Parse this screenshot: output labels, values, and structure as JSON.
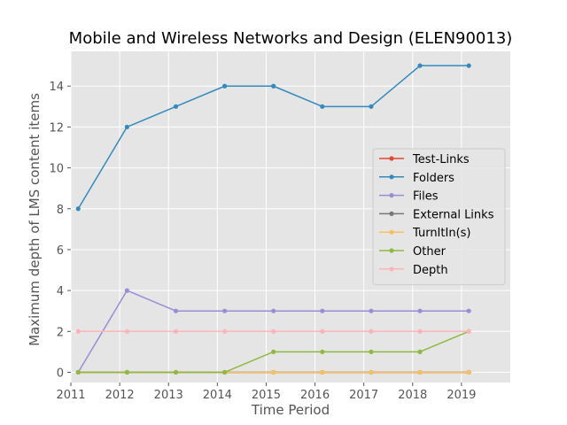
{
  "chart_data": {
    "type": "line",
    "title": "Mobile and Wireless Networks and Design (ELEN90013)",
    "xlabel": "Time Period",
    "ylabel": "Maximum depth of LMS content items",
    "xlim": [
      2011,
      2020
    ],
    "ylim": [
      -0.5,
      15.7
    ],
    "xticks": [
      2011,
      2012,
      2013,
      2014,
      2015,
      2016,
      2017,
      2018,
      2019
    ],
    "yticks": [
      0,
      2,
      4,
      6,
      8,
      10,
      12,
      14
    ],
    "x": [
      2011.15,
      2012.15,
      2013.15,
      2014.15,
      2015.15,
      2016.15,
      2017.15,
      2018.15,
      2019.15
    ],
    "grid": true,
    "legend_position": "center-right",
    "series": [
      {
        "name": "Test-Links",
        "color": "#E24A33",
        "values": [
          0,
          0,
          0,
          0,
          0,
          0,
          0,
          0,
          0
        ]
      },
      {
        "name": "Folders",
        "color": "#348ABD",
        "values": [
          8,
          12,
          13,
          14,
          14,
          13,
          13,
          15,
          15
        ]
      },
      {
        "name": "Files",
        "color": "#988ED5",
        "values": [
          0,
          4,
          3,
          3,
          3,
          3,
          3,
          3,
          3
        ]
      },
      {
        "name": "External Links",
        "color": "#777777",
        "values": [
          0,
          0,
          0,
          0,
          0,
          0,
          0,
          0,
          0
        ]
      },
      {
        "name": "TurnItIn(s)",
        "color": "#FBC15E",
        "values": [
          0,
          0,
          0,
          0,
          0,
          0,
          0,
          0,
          0
        ]
      },
      {
        "name": "Other",
        "color": "#8EBA42",
        "values": [
          0,
          0,
          0,
          0,
          1,
          1,
          1,
          1,
          2
        ]
      },
      {
        "name": "Depth",
        "color": "#FFB5B8",
        "values": [
          2,
          2,
          2,
          2,
          2,
          2,
          2,
          2,
          2
        ]
      }
    ]
  }
}
